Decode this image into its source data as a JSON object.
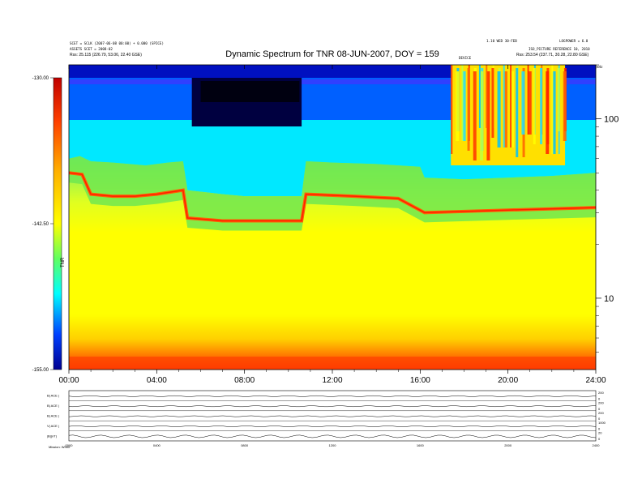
{
  "header": {
    "left_line1": "SCET = SCLK (2007-06-08 00:00) + 0.000 (SPICE)",
    "left_line2": "ASSETS SCET = 2008-02",
    "left_line3": "Rss: 25.115 (226.79, 53.06, 22.40 GSE)",
    "right_line1": "1.10 WED 30-FEB",
    "right_line2": "LOGPOWER = 6.0",
    "right_line3": "ISO_PICTURE REFERENCE 10, 2010",
    "right_line4": "Rss: 253.54 (237.71, 30.28, 22.80 GSE)",
    "tag_mid": "DEVICE",
    "khz_label": "kHz"
  },
  "chart_data": {
    "type": "heatmap",
    "title": "Dynamic Spectrum for TNR 08-JUN-2007, DOY = 159",
    "x_ticks": [
      "00:00",
      "04:00",
      "08:00",
      "12:00",
      "16:00",
      "20:00",
      "24:00"
    ],
    "x_range_hours": [
      0,
      24
    ],
    "y_scale": "log",
    "y_ticks": [
      {
        "value": 100,
        "label": "100"
      },
      {
        "value": 10,
        "label": "10"
      }
    ],
    "y_range_khz": [
      4,
      200
    ],
    "colorbar": {
      "label": "TNR",
      "ticks": [
        "-130.00",
        "-142.50",
        "-155.00"
      ],
      "range": [
        -155.0,
        -130.0
      ],
      "colors": [
        "#b00000",
        "#ff3000",
        "#ff9900",
        "#ffff00",
        "#00ffff",
        "#0000ff",
        "#000080"
      ]
    },
    "bands": [
      {
        "name": "lower emission edge",
        "points": [
          [
            0,
            60
          ],
          [
            0.5,
            62
          ],
          [
            1.0,
            58
          ],
          [
            2.0,
            57
          ],
          [
            3.5,
            55
          ],
          [
            4.5,
            57
          ],
          [
            5.2,
            58
          ],
          [
            5.4,
            40
          ],
          [
            7.0,
            38
          ],
          [
            8.0,
            37
          ],
          [
            10.6,
            37
          ],
          [
            10.8,
            58
          ],
          [
            12.0,
            57
          ],
          [
            14.0,
            56
          ],
          [
            16.0,
            54
          ],
          [
            16.2,
            47
          ],
          [
            18.0,
            46
          ],
          [
            20.0,
            47
          ],
          [
            22.0,
            48
          ],
          [
            24.0,
            50
          ]
        ]
      },
      {
        "name": "spectral peak",
        "points": [
          [
            0,
            50
          ],
          [
            0.6,
            49
          ],
          [
            1.0,
            38
          ],
          [
            2.0,
            37
          ],
          [
            3.0,
            37
          ],
          [
            4.0,
            38
          ],
          [
            5.2,
            40
          ],
          [
            5.4,
            28
          ],
          [
            7.0,
            27
          ],
          [
            10.6,
            27
          ],
          [
            10.8,
            38
          ],
          [
            13.0,
            37
          ],
          [
            15.0,
            36
          ],
          [
            16.2,
            30
          ],
          [
            20.0,
            31
          ],
          [
            24.0,
            32
          ]
        ]
      }
    ],
    "burst_interval_hours": [
      17.4,
      22.6
    ]
  },
  "strips": {
    "labels": [
      "B| ACE |",
      "B| ACE |",
      "B| ACE |",
      "V| ACE |",
      "|B|(nT)"
    ],
    "right_ticks": [
      [
        "200",
        "0"
      ],
      [
        "200",
        "0"
      ],
      [
        "200",
        "0"
      ],
      [
        "1000",
        "0"
      ],
      [
        "20",
        "0"
      ]
    ],
    "x_ticks": [
      "0000",
      "0400",
      "0800",
      "1200",
      "1600",
      "2000",
      "2400"
    ],
    "footer": "Mission: WIND"
  }
}
